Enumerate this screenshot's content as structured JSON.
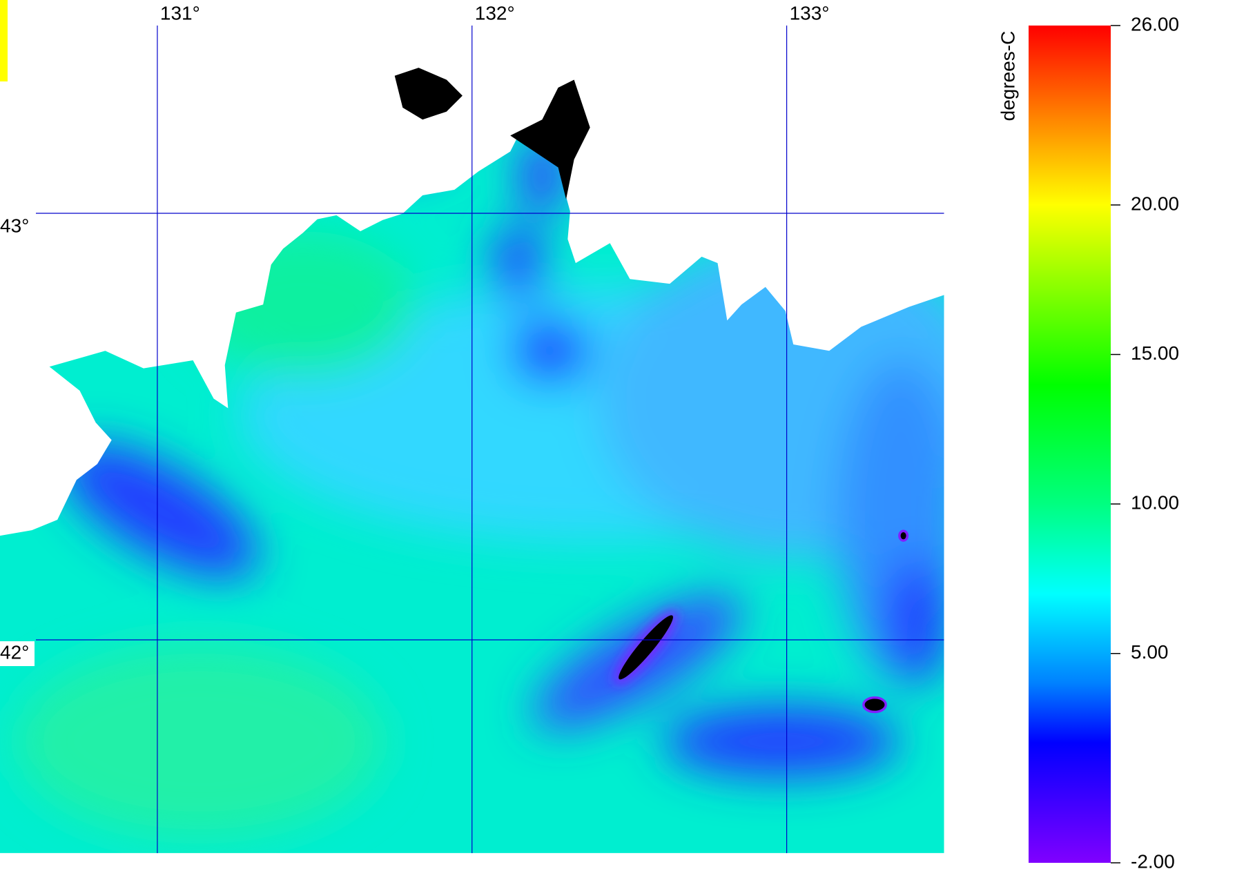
{
  "map": {
    "xlim": [
      130.5,
      133.5
    ],
    "ylim": [
      41.5,
      43.5
    ],
    "lon_ticks": [
      {
        "value": 131,
        "label": "131°"
      },
      {
        "value": 132,
        "label": "132°"
      },
      {
        "value": 133,
        "label": "133°"
      }
    ],
    "lat_ticks": [
      {
        "value": 43,
        "label": "43°"
      },
      {
        "value": 42,
        "label": "42°"
      }
    ],
    "grid_color": "#0000cc"
  },
  "colorbar": {
    "title": "degrees-C",
    "lim": [
      -2,
      26
    ],
    "ticks": [
      {
        "value": 26,
        "label": "26.00"
      },
      {
        "value": 20,
        "label": "20.00"
      },
      {
        "value": 15,
        "label": "15.00"
      },
      {
        "value": 10,
        "label": "10.00"
      },
      {
        "value": 5,
        "label": "5.00"
      },
      {
        "value": -2,
        "label": "-2.00"
      }
    ]
  }
}
